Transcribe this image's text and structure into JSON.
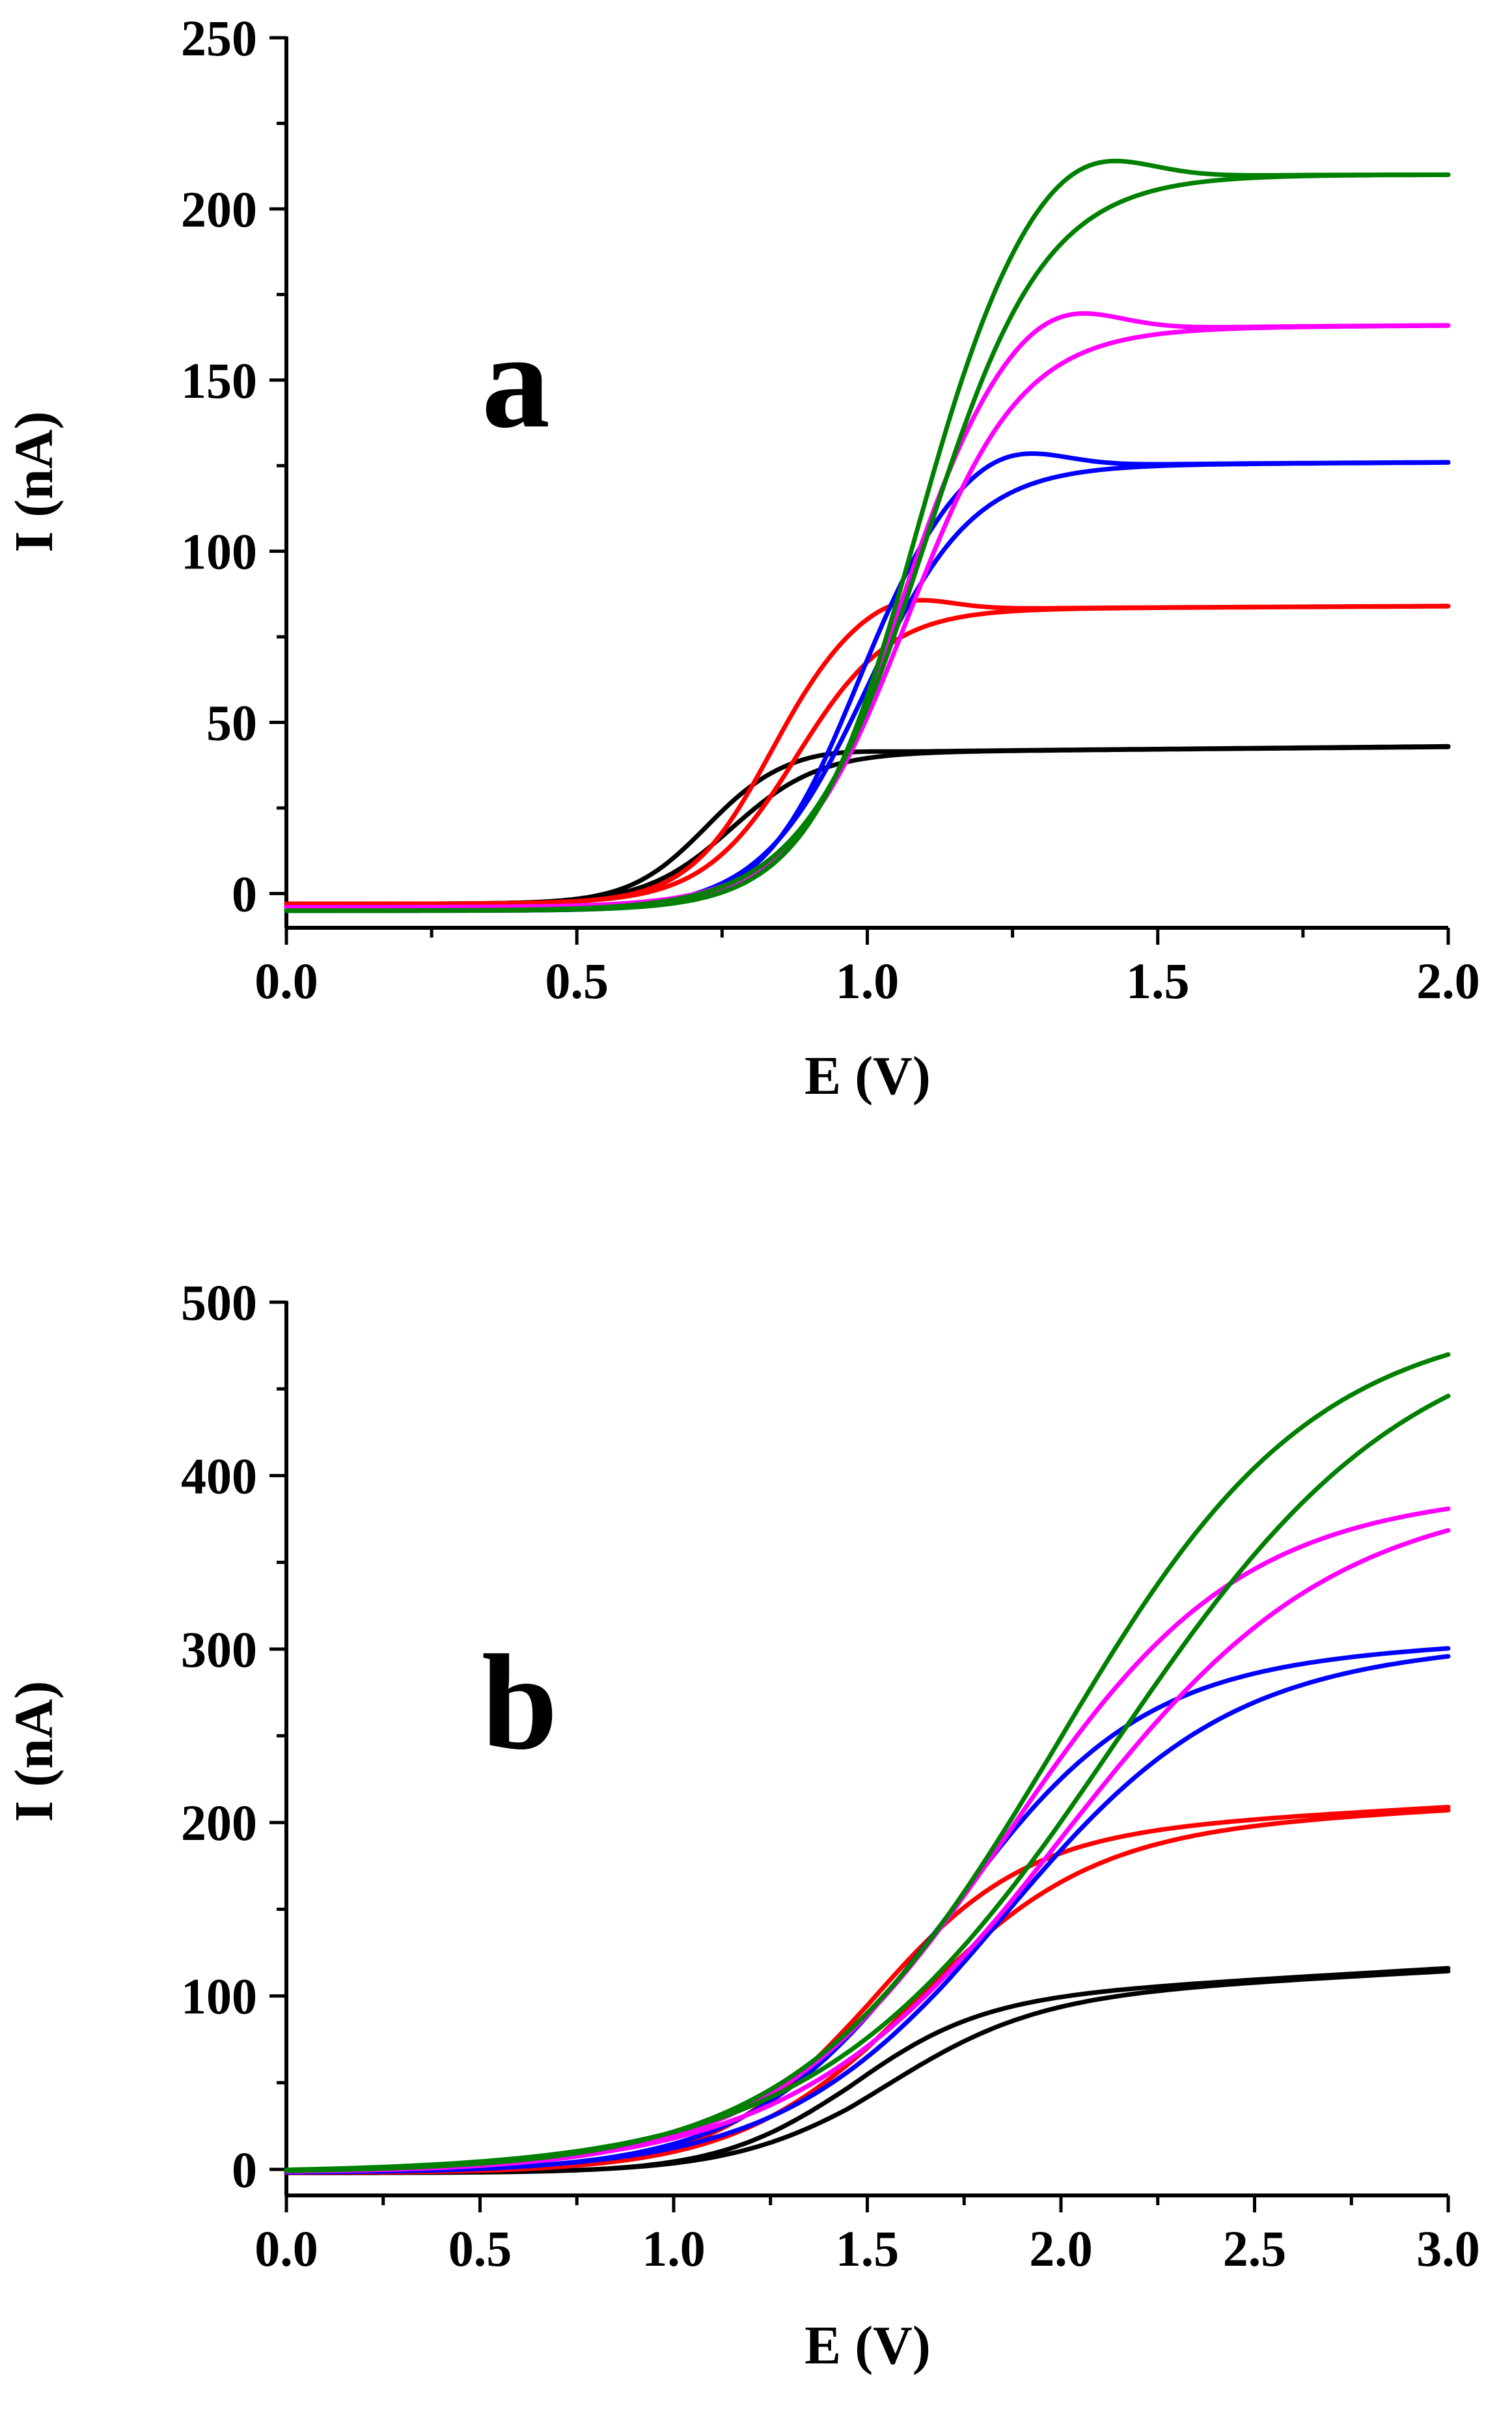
{
  "chart_data": [
    {
      "type": "line",
      "panel_label": "a",
      "xlabel": "E (V)",
      "ylabel": "I (nA)",
      "xlim": [
        0.0,
        2.0
      ],
      "ylim": [
        -10,
        250
      ],
      "x_ticks": [
        0.0,
        0.5,
        1.0,
        1.5,
        2.0
      ],
      "x_tick_labels": [
        "0.0",
        "0.5",
        "1.0",
        "1.5",
        "2.0"
      ],
      "y_ticks": [
        0,
        50,
        100,
        150,
        200,
        250
      ],
      "y_tick_labels": [
        "0",
        "50",
        "100",
        "150",
        "200",
        "250"
      ],
      "series": [
        {
          "name": "black",
          "color": "#000000",
          "plateau": 43,
          "peak": 44,
          "e_half": 0.72,
          "width": 0.065,
          "shift": 0.05,
          "baseline": -3,
          "tail": 2
        },
        {
          "name": "red",
          "color": "#ff0000",
          "plateau": 84,
          "peak": 89,
          "e_half": 0.83,
          "width": 0.07,
          "shift": 0.05,
          "baseline": -3,
          "tail": 1
        },
        {
          "name": "blue",
          "color": "#0000ff",
          "plateau": 126,
          "peak": 133,
          "e_half": 0.98,
          "width": 0.08,
          "shift": 0.02,
          "baseline": -5,
          "tail": 1
        },
        {
          "name": "magenta",
          "color": "#ff00ff",
          "plateau": 166,
          "peak": 175,
          "e_half": 1.05,
          "width": 0.085,
          "shift": 0.02,
          "baseline": -4,
          "tail": 1
        },
        {
          "name": "green",
          "color": "#008000",
          "plateau": 210,
          "peak": 220,
          "e_half": 1.08,
          "width": 0.09,
          "shift": 0.02,
          "baseline": -5,
          "tail": 0
        }
      ]
    },
    {
      "type": "line",
      "panel_label": "b",
      "xlabel": "E (V)",
      "ylabel": "I (nA)",
      "xlim": [
        0.0,
        3.0
      ],
      "ylim": [
        -15,
        500
      ],
      "x_ticks": [
        0.0,
        0.5,
        1.0,
        1.5,
        2.0,
        2.5,
        3.0
      ],
      "x_tick_labels": [
        "0.0",
        "0.5",
        "1.0",
        "1.5",
        "2.0",
        "2.5",
        "3.0"
      ],
      "y_ticks": [
        0,
        100,
        200,
        300,
        400,
        500
      ],
      "y_tick_labels": [
        "0",
        "100",
        "200",
        "300",
        "400",
        "500"
      ],
      "series": [
        {
          "name": "black",
          "color": "#000000",
          "plateau": 116,
          "peak": 98,
          "e_half": 1.45,
          "width": 0.17,
          "shift": 0.1,
          "baseline": -2,
          "tail": 20
        },
        {
          "name": "red",
          "color": "#ff0000",
          "plateau": 209,
          "peak": 195,
          "e_half": 1.5,
          "width": 0.2,
          "shift": 0.12,
          "baseline": -2,
          "tail": 18
        },
        {
          "name": "blue",
          "color": "#0000ff",
          "plateau": 302,
          "peak": 295,
          "e_half": 1.7,
          "width": 0.25,
          "shift": 0.15,
          "baseline": -2,
          "tail": 12
        },
        {
          "name": "magenta",
          "color": "#ff00ff",
          "plateau": 389,
          "peak": 387,
          "e_half": 1.85,
          "width": 0.3,
          "shift": 0.15,
          "baseline": -2,
          "tail": 8
        },
        {
          "name": "green",
          "color": "#008000",
          "plateau": 491,
          "peak": 489,
          "e_half": 1.98,
          "width": 0.33,
          "shift": 0.15,
          "baseline": -2,
          "tail": 6
        }
      ]
    }
  ]
}
